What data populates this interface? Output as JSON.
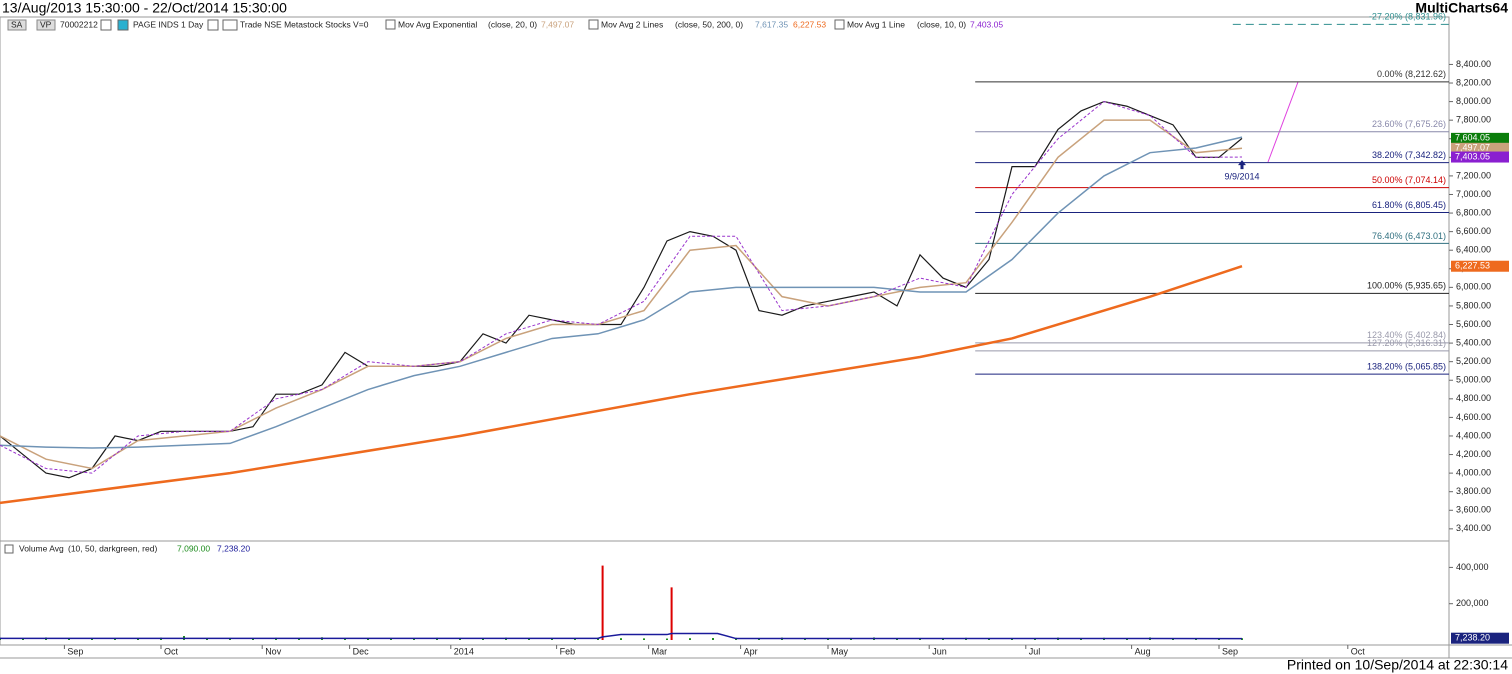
{
  "header": {
    "range": "13/Aug/2013 15:30:00 - 22/Oct/2014 15:30:00",
    "app": "MultiCharts64"
  },
  "toolbar": {
    "symbol_short": "SA",
    "vp": "VP",
    "code": "70002212",
    "instrument": "PAGE INDS 1 Day",
    "feed": "Trade NSE Metastock Stocks V=0",
    "ind1": "Mov Avg Exponential",
    "ind1_params": "(close, 20, 0)",
    "ind1_value": "7,497.07",
    "ind2": "Mov Avg 2 Lines",
    "ind2_params": "(close, 50, 200, 0)",
    "ind2_value1": "7,617.35",
    "ind2_value2": "6,227.53",
    "ind3": "Mov Avg 1 Line",
    "ind3_params": "(close, 10, 0)",
    "ind3_value": "7,403.05"
  },
  "volume_header": {
    "name": "Volume Avg",
    "params": "(10, 50, darkgreen, red)",
    "value1": "7,090.00",
    "value2": "7,238.20"
  },
  "footer": "Printed on 10/Sep/2014 at 22:30:14",
  "chart_data": {
    "type": "line",
    "xlim": [
      0,
      315
    ],
    "xticks": [
      {
        "value": 14,
        "label": "Sep"
      },
      {
        "value": 35,
        "label": "Oct"
      },
      {
        "value": 57,
        "label": "Nov"
      },
      {
        "value": 76,
        "label": "Dec"
      },
      {
        "value": 98,
        "label": "2014"
      },
      {
        "value": 121,
        "label": "Feb"
      },
      {
        "value": 141,
        "label": "Mar"
      },
      {
        "value": 161,
        "label": "Apr"
      },
      {
        "value": 180,
        "label": "May"
      },
      {
        "value": 202,
        "label": "Jun"
      },
      {
        "value": 223,
        "label": "Jul"
      },
      {
        "value": 246,
        "label": "Aug"
      },
      {
        "value": 265,
        "label": "Sep"
      },
      {
        "value": 293,
        "label": "Oct"
      }
    ],
    "ylim": [
      3280,
      8900
    ],
    "yticks": [
      {
        "value": 3400,
        "label": "3,400.00"
      },
      {
        "value": 3600,
        "label": "3,600.00"
      },
      {
        "value": 3800,
        "label": "3,800.00"
      },
      {
        "value": 4000,
        "label": "4,000.00"
      },
      {
        "value": 4200,
        "label": "4,200.00"
      },
      {
        "value": 4400,
        "label": "4,400.00"
      },
      {
        "value": 4600,
        "label": "4,600.00"
      },
      {
        "value": 4800,
        "label": "4,800.00"
      },
      {
        "value": 5000,
        "label": "5,000.00"
      },
      {
        "value": 5200,
        "label": "5,200.00"
      },
      {
        "value": 5400,
        "label": "5,400.00"
      },
      {
        "value": 5600,
        "label": "5,600.00"
      },
      {
        "value": 5800,
        "label": "5,800.00"
      },
      {
        "value": 6000,
        "label": "6,000.00"
      },
      {
        "value": 6200,
        "label": "6,200.00"
      },
      {
        "value": 6400,
        "label": "6,400.00"
      },
      {
        "value": 6600,
        "label": "6,600.00"
      },
      {
        "value": 6800,
        "label": "6,800.00"
      },
      {
        "value": 7000,
        "label": "7,000.00"
      },
      {
        "value": 7200,
        "label": "7,200.00"
      },
      {
        "value": 7400,
        "label": "7,400.00"
      },
      {
        "value": 7600,
        "label": "7,600.00"
      },
      {
        "value": 7800,
        "label": "7,800.00"
      },
      {
        "value": 8000,
        "label": "8,000.00"
      },
      {
        "value": 8200,
        "label": "8,200.00"
      },
      {
        "value": 8400,
        "label": "8,400.00"
      }
    ],
    "series": [
      {
        "color": "#1a1a1a",
        "width": 1.2,
        "x": [
          0,
          5,
          10,
          15,
          20,
          25,
          30,
          35,
          40,
          45,
          50,
          55,
          60,
          65,
          70,
          75,
          80,
          85,
          90,
          95,
          100,
          105,
          110,
          115,
          120,
          125,
          130,
          135,
          140,
          145,
          150,
          155,
          160,
          165,
          170,
          175,
          180,
          185,
          190,
          195,
          200,
          205,
          210,
          215,
          220,
          225,
          230,
          235,
          240,
          245,
          250,
          255,
          260,
          265,
          270
        ],
        "values": [
          4400,
          4200,
          4000,
          3950,
          4050,
          4400,
          4350,
          4450,
          4450,
          4450,
          4450,
          4500,
          4850,
          4850,
          4950,
          5300,
          5150,
          5150,
          5150,
          5150,
          5200,
          5500,
          5400,
          5700,
          5650,
          5600,
          5600,
          5600,
          6000,
          6500,
          6600,
          6550,
          6400,
          5750,
          5700,
          5800,
          5850,
          5900,
          5950,
          5800,
          6350,
          6100,
          6000,
          6300,
          7300,
          7300,
          7700,
          7900,
          8000,
          7950,
          7850,
          7750,
          7400,
          7400,
          7604.05
        ],
        "last_label": "7,604.05",
        "label_color": "#0a7d0a"
      },
      {
        "color": "#c9a27c",
        "width": 1.5,
        "x": [
          0,
          10,
          20,
          30,
          40,
          50,
          60,
          70,
          80,
          90,
          100,
          110,
          120,
          130,
          140,
          150,
          160,
          170,
          180,
          190,
          200,
          210,
          220,
          230,
          240,
          250,
          260,
          270
        ],
        "values": [
          4400,
          4150,
          4050,
          4350,
          4400,
          4450,
          4700,
          4900,
          5150,
          5150,
          5200,
          5450,
          5600,
          5600,
          5750,
          6400,
          6450,
          5900,
          5800,
          5900,
          6000,
          6050,
          6700,
          7400,
          7800,
          7800,
          7450,
          7497.07
        ],
        "last_label": "7,497.07",
        "label_color": "#c9a27c"
      },
      {
        "color": "#6f93b5",
        "width": 1.5,
        "x": [
          0,
          10,
          20,
          30,
          40,
          50,
          60,
          70,
          80,
          90,
          100,
          110,
          120,
          130,
          140,
          150,
          160,
          170,
          180,
          190,
          200,
          210,
          220,
          230,
          240,
          250,
          260,
          270
        ],
        "values": [
          4300,
          4280,
          4270,
          4280,
          4300,
          4320,
          4500,
          4700,
          4900,
          5050,
          5150,
          5300,
          5450,
          5500,
          5650,
          5950,
          6000,
          6000,
          6000,
          6000,
          5950,
          5950,
          6300,
          6800,
          7200,
          7450,
          7500,
          7617.35
        ]
      },
      {
        "color": "#ee6a1e",
        "width": 2.5,
        "x": [
          0,
          50,
          100,
          150,
          200,
          220,
          250,
          270
        ],
        "values": [
          3680,
          4000,
          4400,
          4850,
          5250,
          5450,
          5900,
          6227.53
        ],
        "last_label": "6,227.53",
        "label_color": "#ee6a1e"
      },
      {
        "color": "#9933cc",
        "width": 1,
        "dashed": true,
        "x": [
          0,
          10,
          20,
          30,
          40,
          50,
          60,
          70,
          80,
          90,
          100,
          110,
          120,
          130,
          140,
          150,
          160,
          170,
          180,
          190,
          200,
          210,
          220,
          230,
          240,
          250,
          260,
          270
        ],
        "values": [
          4300,
          4050,
          4000,
          4400,
          4450,
          4450,
          4800,
          4900,
          5200,
          5150,
          5200,
          5500,
          5650,
          5600,
          5850,
          6550,
          6550,
          5750,
          5800,
          5900,
          6100,
          6000,
          7000,
          7600,
          8000,
          7850,
          7400,
          7403.05
        ],
        "last_label": "7,403.05",
        "label_color": "#8a1fd0"
      }
    ],
    "fib_x_start": 212,
    "fib_levels": [
      {
        "value": 8831.96,
        "label": "-27.20% (8,831.96)",
        "color": "#2f8f8f",
        "dashed": true,
        "x_start": 268
      },
      {
        "value": 8212.62,
        "label": "0.00% (8,212.62)",
        "color": "#333333"
      },
      {
        "value": 7675.26,
        "label": "23.60% (7,675.26)",
        "color": "#8888aa"
      },
      {
        "value": 7342.82,
        "label": "38.20% (7,342.82)",
        "color": "#1a237e"
      },
      {
        "value": 7074.14,
        "label": "50.00% (7,074.14)",
        "color": "#cc0000"
      },
      {
        "value": 6805.45,
        "label": "61.80% (6,805.45)",
        "color": "#1a237e"
      },
      {
        "value": 6473.01,
        "label": "76.40% (6,473.01)",
        "color": "#2f6f7f"
      },
      {
        "value": 5935.65,
        "label": "100.00% (5,935.65)",
        "color": "#222222"
      },
      {
        "value": 5402.84,
        "label": "123.40% (5,402.84)",
        "color": "#9999aa"
      },
      {
        "value": 5316.31,
        "label": "127.20% (5,316.31)",
        "color": "#9999aa"
      },
      {
        "value": 5065.85,
        "label": "138.20% (5,065.85)",
        "color": "#1a237e"
      }
    ],
    "annotation": {
      "text": "9/9/2014",
      "x": 270,
      "value": 7230
    },
    "volume": {
      "ylim": [
        0,
        540000
      ],
      "yticks": [
        {
          "value": 200000,
          "label": "200,000"
        },
        {
          "value": 400000,
          "label": "400,000"
        }
      ],
      "bars": [
        {
          "color": "#1e8c1e",
          "x": [
            0,
            5,
            10,
            15,
            20,
            25,
            30,
            35,
            40,
            45,
            50,
            55,
            60,
            65,
            70,
            75,
            80,
            85,
            90,
            95,
            100,
            105,
            110,
            115,
            120,
            125,
            130,
            135,
            140,
            145,
            150,
            155,
            160,
            165,
            170,
            175,
            180,
            185,
            190,
            195,
            200,
            205,
            210,
            215,
            220,
            225,
            230,
            235,
            240,
            245,
            250,
            255,
            260,
            265,
            270
          ],
          "values": [
            12000,
            9000,
            14000,
            8000,
            10000,
            11000,
            9000,
            13000,
            22000,
            8000,
            10000,
            9000,
            12000,
            8000,
            15000,
            9000,
            11000,
            7000,
            10000,
            12000,
            8000,
            9000,
            13000,
            10000,
            9000,
            11000,
            12000,
            10000,
            9000,
            8000,
            10000,
            11000,
            12000,
            9000,
            13000,
            8000,
            10000,
            9000,
            14000,
            10000,
            8000,
            9000,
            12000,
            10000,
            11000,
            9000,
            13000,
            10000,
            12000,
            9000,
            14000,
            10000,
            9000,
            11000,
            10000
          ]
        },
        {
          "color": "#dd0000",
          "x": [
            131,
            146
          ],
          "values": [
            410000,
            290000
          ]
        }
      ],
      "avg": {
        "color": "#1a1a9a",
        "x": [
          0,
          50,
          100,
          125,
          130,
          131,
          135,
          145,
          146,
          150,
          156,
          160,
          200,
          250,
          270
        ],
        "values": [
          9000,
          9000,
          9000,
          9000,
          9000,
          17000,
          30000,
          30000,
          36000,
          36000,
          36000,
          8000,
          8000,
          8000,
          7238.2
        ],
        "last_label": "7,238.20"
      }
    }
  }
}
